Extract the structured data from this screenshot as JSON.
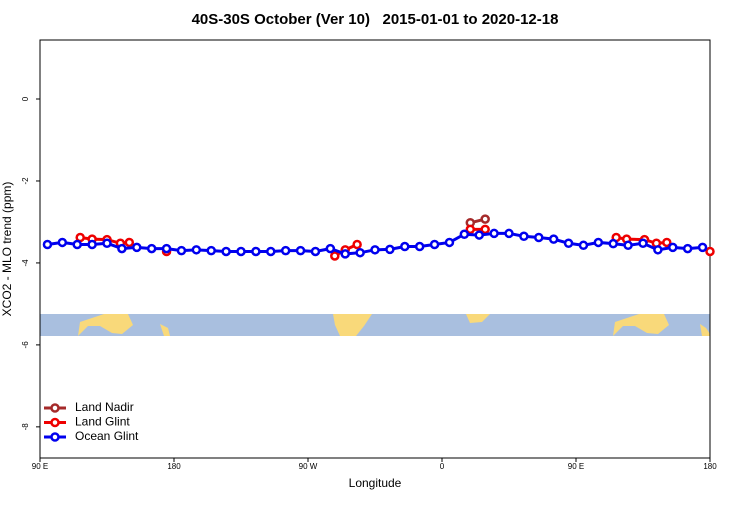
{
  "chart_data": {
    "type": "line",
    "title": "40S-30S October (Ver 10)   2015-01-01 to 2020-12-18",
    "x_label": "Longitude",
    "y_label": "XCO2 - MLO trend (ppm)",
    "xlim": [
      90,
      540
    ],
    "xticks": [
      {
        "value": 90,
        "label": "90 E"
      },
      {
        "value": 180,
        "label": "180"
      },
      {
        "value": 270,
        "label": "90 W"
      },
      {
        "value": 360,
        "label": "0"
      },
      {
        "value": 450,
        "label": "90 E"
      },
      {
        "value": 540,
        "label": "180"
      }
    ],
    "ylim": [
      -8.76,
      1.44
    ],
    "yticks": [
      0,
      -2,
      -4,
      -6,
      -8
    ],
    "legend": "bottom-left",
    "series": [
      {
        "name": "Land Nadir",
        "color": "#a52a2a",
        "x": [
          379,
          389
        ],
        "values": [
          -3.02,
          -2.93
        ]
      },
      {
        "name": "Land Glint",
        "color": "#ee0000",
        "x": [
          117,
          125,
          135,
          144,
          150,
          160,
          175,
          230,
          288,
          295,
          303,
          340,
          379,
          389,
          430,
          477,
          484,
          496,
          504,
          511,
          525,
          540
        ],
        "values": [
          -3.38,
          -3.42,
          -3.43,
          -3.52,
          -3.5,
          null,
          -3.72,
          null,
          -3.83,
          -3.68,
          -3.55,
          null,
          -3.18,
          -3.18,
          null,
          -3.38,
          -3.42,
          -3.43,
          -3.52,
          -3.5,
          null,
          -3.72
        ]
      },
      {
        "name": "Ocean Glint",
        "color": "#0000ee",
        "x": [
          95,
          105,
          115,
          125,
          135,
          145,
          155,
          165,
          175,
          185,
          195,
          205,
          215,
          225,
          235,
          245,
          255,
          265,
          275,
          285,
          295,
          305,
          315,
          325,
          335,
          345,
          355,
          365,
          375,
          385,
          395,
          405,
          415,
          425,
          435,
          445,
          455,
          465,
          475,
          485,
          495,
          505,
          515,
          525,
          535
        ],
        "values": [
          -3.55,
          -3.5,
          -3.55,
          -3.55,
          -3.52,
          -3.65,
          -3.62,
          -3.65,
          -3.65,
          -3.7,
          -3.68,
          -3.7,
          -3.72,
          -3.72,
          -3.72,
          -3.72,
          -3.7,
          -3.7,
          -3.72,
          -3.65,
          -3.78,
          -3.75,
          -3.68,
          -3.67,
          -3.6,
          -3.6,
          -3.55,
          -3.5,
          -3.3,
          -3.32,
          -3.28,
          -3.28,
          -3.35,
          -3.38,
          -3.42,
          -3.52,
          -3.57,
          -3.5,
          -3.53,
          -3.57,
          -3.52,
          -3.68,
          -3.62,
          -3.65,
          -3.62
        ]
      }
    ]
  }
}
